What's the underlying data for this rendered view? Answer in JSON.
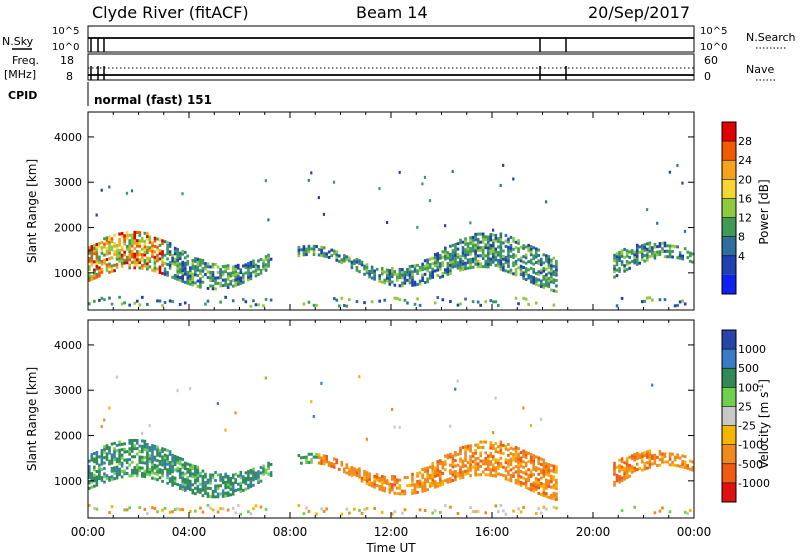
{
  "header": {
    "station": "Clyde River (fitACF)",
    "beam": "Beam 14",
    "date": "20/Sep/2017"
  },
  "top_panels": {
    "nsky_label": "N.Sky",
    "nsearch_label": "N.Search",
    "nsky_ticks": [
      "10^5",
      "10^0"
    ],
    "nsearch_ticks": [
      "10^5",
      "10^0"
    ],
    "freq_label": "Freq.",
    "freq_unit": "[MHz]",
    "freq_ticks": [
      "18",
      "8"
    ],
    "nave_label": "Nave",
    "nave_ticks": [
      "60",
      "0"
    ],
    "cpid_label": "CPID",
    "cpid_text": "normal (fast) 151"
  },
  "chart_data": [
    {
      "type": "heatmap",
      "quantity": "Power",
      "ylabel": "Slant Range [km]",
      "colorbar_label": "Power [dB]",
      "ylim": [
        180,
        4550
      ],
      "yticks": [
        1000,
        2000,
        3000,
        4000
      ],
      "colorbar_ticks": [
        "28",
        "24",
        "20",
        "16",
        "12",
        "8",
        "4"
      ],
      "colorbar_colors": [
        "#e00000",
        "#f35a00",
        "#f7a21b",
        "#f7d533",
        "#8ec83b",
        "#3e9a56",
        "#2d6f9c",
        "#1f3fb3",
        "#1020f0"
      ]
    },
    {
      "type": "heatmap",
      "quantity": "Velocity",
      "ylabel": "Slant Range [km]",
      "colorbar_label": "Velocity [m s",
      "colorbar_label_sup": "-1",
      "colorbar_label_tail": "]",
      "ylim": [
        180,
        4550
      ],
      "yticks": [
        1000,
        2000,
        3000,
        4000
      ],
      "colorbar_ticks": [
        "1000",
        "500",
        "100",
        "25",
        "-25",
        "-100",
        "-500",
        "-1000"
      ],
      "colorbar_colors": [
        "#2546a8",
        "#3a7bc8",
        "#2f8a55",
        "#6fd04d",
        "#c8c8c8",
        "#f5b400",
        "#f08a1c",
        "#f05a14",
        "#e01010"
      ]
    }
  ],
  "x_axis": {
    "ticks": [
      "00:00",
      "04:00",
      "08:00",
      "12:00",
      "16:00",
      "20:00",
      "00:00"
    ],
    "label": "Time UT"
  }
}
